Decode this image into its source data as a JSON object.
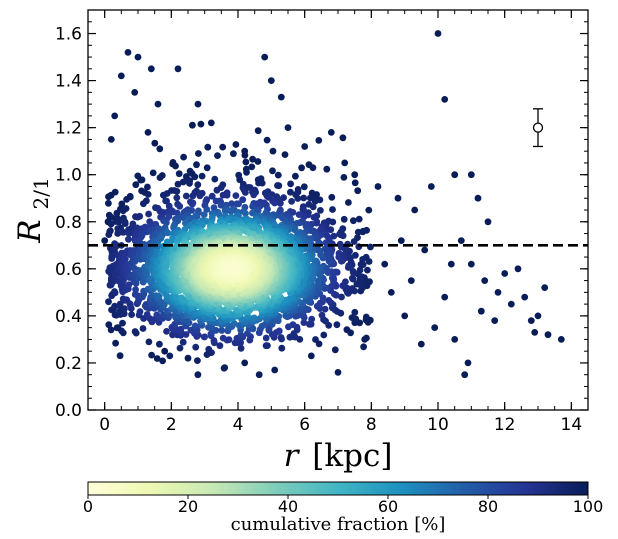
{
  "chart_data": {
    "type": "scatter",
    "title": "",
    "xlabel": {
      "symbol": "r",
      "unit": "[kpc]"
    },
    "ylabel": {
      "symbol": "R",
      "subscript": "2/1"
    },
    "xlim": [
      -0.5,
      14.5
    ],
    "ylim": [
      0.0,
      1.7
    ],
    "xticks": [
      0,
      2,
      4,
      6,
      8,
      10,
      12,
      14
    ],
    "yticks": [
      0.0,
      0.2,
      0.4,
      0.6,
      0.8,
      1.0,
      1.2,
      1.4,
      1.6
    ],
    "grid": false,
    "reference_line": {
      "y": 0.7,
      "style": "dashed",
      "color": "#000000"
    },
    "error_bar_marker": {
      "x": 13.0,
      "y": 1.2,
      "yerr_low": 0.08,
      "yerr_high": 0.08
    },
    "density_cloud": {
      "n_points": 3200,
      "core_x_mean": 3.8,
      "core_x_sd": 1.4,
      "core_y_mean": 0.6,
      "core_y_sd": 0.13,
      "x_range": [
        0.1,
        8.0
      ]
    },
    "outlier_points": [
      [
        0.7,
        1.52
      ],
      [
        1.0,
        1.5
      ],
      [
        0.5,
        1.42
      ],
      [
        0.3,
        1.25
      ],
      [
        0.2,
        1.15
      ],
      [
        0.9,
        1.35
      ],
      [
        1.4,
        1.45
      ],
      [
        1.6,
        1.3
      ],
      [
        1.3,
        1.18
      ],
      [
        2.2,
        1.45
      ],
      [
        2.8,
        1.3
      ],
      [
        3.2,
        1.22
      ],
      [
        4.8,
        1.5
      ],
      [
        5.0,
        1.4
      ],
      [
        5.3,
        1.33
      ],
      [
        5.5,
        1.2
      ],
      [
        4.2,
        1.1
      ],
      [
        6.0,
        1.12
      ],
      [
        6.8,
        1.18
      ],
      [
        7.2,
        1.05
      ],
      [
        7.5,
        1.0
      ],
      [
        8.2,
        0.95
      ],
      [
        8.8,
        0.9
      ],
      [
        9.3,
        0.85
      ],
      [
        9.8,
        0.95
      ],
      [
        10.0,
        1.6
      ],
      [
        10.2,
        1.32
      ],
      [
        10.5,
        1.0
      ],
      [
        11.0,
        1.0
      ],
      [
        11.2,
        0.9
      ],
      [
        11.5,
        0.8
      ],
      [
        10.7,
        0.72
      ],
      [
        11.0,
        0.62
      ],
      [
        11.4,
        0.55
      ],
      [
        11.8,
        0.5
      ],
      [
        12.2,
        0.45
      ],
      [
        12.6,
        0.48
      ],
      [
        12.8,
        0.38
      ],
      [
        13.3,
        0.32
      ],
      [
        13.7,
        0.3
      ],
      [
        13.2,
        0.52
      ],
      [
        12.0,
        0.58
      ],
      [
        10.8,
        0.15
      ],
      [
        10.9,
        0.2
      ],
      [
        10.5,
        0.3
      ],
      [
        9.9,
        0.35
      ],
      [
        9.5,
        0.28
      ],
      [
        9.0,
        0.4
      ],
      [
        8.6,
        0.5
      ],
      [
        8.4,
        0.62
      ],
      [
        9.2,
        0.55
      ],
      [
        10.2,
        0.48
      ],
      [
        11.7,
        0.38
      ],
      [
        12.4,
        0.6
      ],
      [
        8.9,
        0.72
      ],
      [
        9.6,
        0.68
      ],
      [
        3.6,
        0.18
      ],
      [
        4.2,
        0.2
      ],
      [
        5.1,
        0.17
      ],
      [
        7.0,
        0.16
      ],
      [
        1.8,
        0.25
      ],
      [
        2.5,
        0.22
      ],
      [
        6.2,
        0.23
      ],
      [
        7.8,
        0.3
      ],
      [
        0.4,
        0.35
      ],
      [
        0.2,
        0.55
      ],
      [
        0.1,
        0.8
      ],
      [
        0.0,
        0.72
      ],
      [
        13.0,
        0.4
      ],
      [
        12.9,
        0.33
      ],
      [
        11.3,
        0.42
      ],
      [
        10.4,
        0.62
      ]
    ],
    "colorbar": {
      "label": "cumulative fraction [%]",
      "range": [
        0,
        100
      ],
      "ticks": [
        0,
        20,
        40,
        60,
        80,
        100
      ],
      "colormap": [
        "#ffffd9",
        "#edf8b1",
        "#c7e9b4",
        "#7fcdbb",
        "#41b6c4",
        "#1d91c0",
        "#225ea8",
        "#253494",
        "#081d58"
      ]
    }
  }
}
